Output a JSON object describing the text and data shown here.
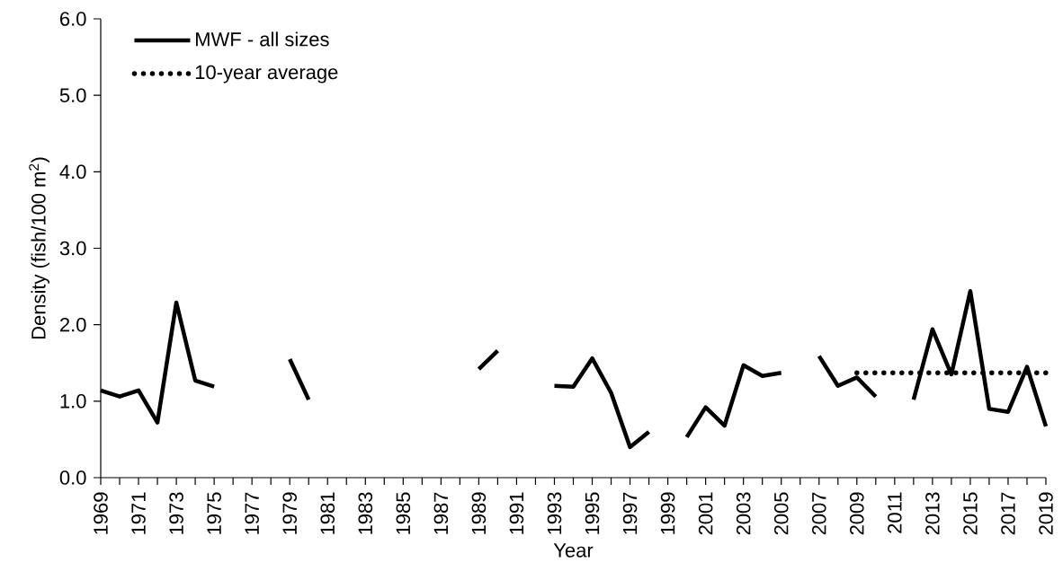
{
  "chart_data": {
    "type": "line",
    "xlabel": "Year",
    "ylabel": "Density (fish/100 m$^{2}$)",
    "categories": [
      "1969",
      null,
      "1971",
      null,
      "1973",
      null,
      "1975",
      null,
      "1977",
      null,
      "1979",
      null,
      "1981",
      null,
      "1983",
      null,
      "1985",
      null,
      "1987",
      null,
      "1989",
      null,
      "1991",
      null,
      "1993",
      null,
      "1995",
      null,
      "1997",
      null,
      "1999",
      null,
      "2001",
      null,
      "2003",
      null,
      "2005",
      null,
      "2007",
      null,
      "2009",
      null,
      "2011",
      null,
      "2013",
      null,
      "2015",
      null,
      "2017",
      null,
      "2019"
    ],
    "series": [
      {
        "name": "MWF - all sizes",
        "color": "#000000",
        "line_style": "solid",
        "values": [
          1.14,
          1.06,
          1.14,
          0.72,
          2.29,
          1.27,
          1.19,
          null,
          null,
          null,
          1.55,
          1.02,
          null,
          null,
          null,
          null,
          null,
          null,
          null,
          null,
          1.42,
          1.66,
          null,
          null,
          1.2,
          1.19,
          1.56,
          1.11,
          0.4,
          0.6,
          null,
          0.53,
          0.92,
          0.68,
          1.47,
          1.33,
          1.37,
          null,
          1.59,
          1.2,
          1.31,
          1.06,
          null,
          1.02,
          1.94,
          1.35,
          2.44,
          0.9,
          0.86,
          1.45,
          0.67
        ]
      },
      {
        "name": "10-year average",
        "color": "#000000",
        "line_style": "dotted",
        "values": [
          null,
          null,
          null,
          null,
          null,
          null,
          null,
          null,
          null,
          null,
          null,
          null,
          null,
          null,
          null,
          null,
          null,
          null,
          null,
          null,
          null,
          null,
          null,
          null,
          null,
          null,
          null,
          null,
          null,
          null,
          null,
          null,
          null,
          null,
          null,
          null,
          null,
          null,
          null,
          null,
          1.37,
          1.37,
          1.37,
          1.37,
          1.37,
          1.37,
          1.37,
          1.37,
          1.37,
          1.37,
          1.37
        ]
      }
    ],
    "ylim": [
      0,
      6
    ],
    "yticks": [
      {
        "value": 0,
        "label": "0.0"
      },
      {
        "value": 1,
        "label": "1.0"
      },
      {
        "value": 2,
        "label": "2.0"
      },
      {
        "value": 3,
        "label": "3.0"
      },
      {
        "value": 4,
        "label": "4.0"
      },
      {
        "value": 5,
        "label": "5.0"
      },
      {
        "value": 6,
        "label": "6.0"
      }
    ],
    "legend": "top left"
  }
}
